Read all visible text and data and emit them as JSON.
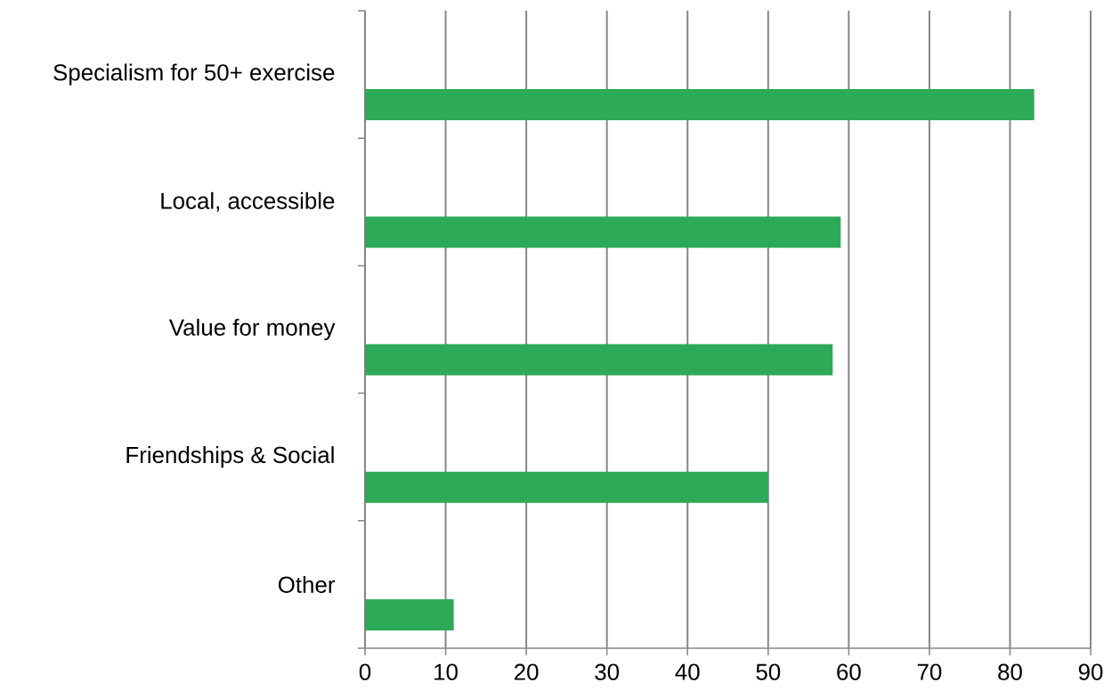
{
  "chart_data": {
    "type": "bar",
    "orientation": "horizontal",
    "categories": [
      "Specialism for 50+ exercise",
      "Local, accessible",
      "Value for money",
      "Friendships & Social",
      "Other"
    ],
    "values": [
      83,
      59,
      58,
      50,
      11
    ],
    "color": "#2daa57",
    "xlim": [
      0,
      90
    ],
    "xticks": [
      0,
      10,
      20,
      30,
      40,
      50,
      60,
      70,
      80,
      90
    ],
    "grid": "x"
  }
}
